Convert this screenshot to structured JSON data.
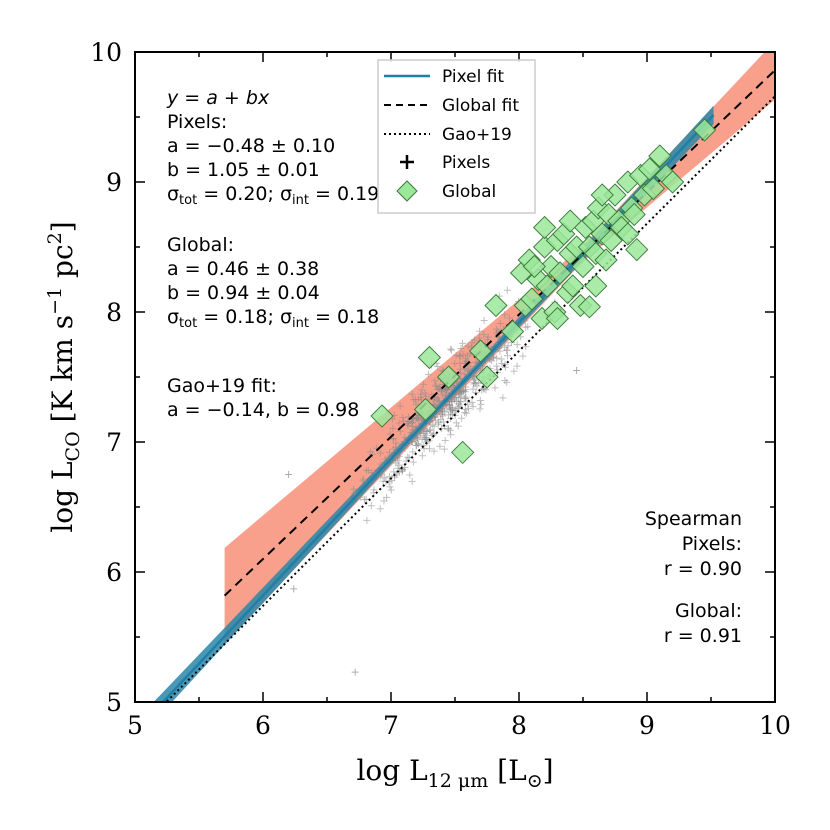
{
  "chart_data": {
    "type": "scatter",
    "xlabel": "log L12 μm [L⊙]",
    "ylabel": "log LCO [K km s−1 pc2]",
    "xlim": [
      5,
      10
    ],
    "ylim": [
      5,
      10
    ],
    "xticks": [
      "5",
      "6",
      "7",
      "8",
      "9",
      "10"
    ],
    "yticks": [
      "5",
      "6",
      "7",
      "8",
      "9",
      "10"
    ],
    "fits": {
      "pixel": {
        "a": -0.48,
        "a_err": 0.1,
        "b": 1.05,
        "b_err": 0.01,
        "sigma_tot": 0.2,
        "sigma_int": 0.19,
        "x_range": [
          5.0,
          9.52
        ]
      },
      "global": {
        "a": 0.46,
        "a_err": 0.38,
        "b": 0.94,
        "b_err": 0.04,
        "sigma_tot": 0.18,
        "sigma_int": 0.18,
        "x_range": [
          5.7,
          10.0
        ]
      },
      "gao19": {
        "a": -0.14,
        "b": 0.98,
        "x_range": [
          5.0,
          10.0
        ]
      }
    },
    "spearman": {
      "pixels_r": 0.9,
      "global_r": 0.91
    },
    "global_points": [
      [
        6.93,
        7.2
      ],
      [
        7.27,
        7.25
      ],
      [
        7.3,
        7.65
      ],
      [
        7.45,
        7.5
      ],
      [
        7.56,
        6.92
      ],
      [
        7.7,
        7.7
      ],
      [
        7.75,
        7.5
      ],
      [
        7.82,
        8.05
      ],
      [
        7.95,
        7.85
      ],
      [
        8.02,
        8.3
      ],
      [
        8.05,
        8.05
      ],
      [
        8.08,
        8.4
      ],
      [
        8.1,
        8.1
      ],
      [
        8.15,
        8.25
      ],
      [
        8.18,
        7.95
      ],
      [
        8.2,
        8.5
      ],
      [
        8.22,
        8.2
      ],
      [
        8.25,
        8.35
      ],
      [
        8.28,
        8.0
      ],
      [
        8.3,
        8.55
      ],
      [
        8.32,
        8.3
      ],
      [
        8.35,
        8.6
      ],
      [
        8.38,
        8.15
      ],
      [
        8.4,
        8.45
      ],
      [
        8.42,
        8.2
      ],
      [
        8.45,
        8.5
      ],
      [
        8.48,
        8.05
      ],
      [
        8.5,
        8.35
      ],
      [
        8.52,
        8.65
      ],
      [
        8.55,
        8.5
      ],
      [
        8.58,
        8.7
      ],
      [
        8.6,
        8.45
      ],
      [
        8.62,
        8.8
      ],
      [
        8.65,
        8.6
      ],
      [
        8.68,
        8.4
      ],
      [
        8.7,
        8.75
      ],
      [
        8.72,
        8.55
      ],
      [
        8.75,
        8.9
      ],
      [
        8.78,
        8.7
      ],
      [
        8.8,
        8.65
      ],
      [
        8.85,
        9.0
      ],
      [
        8.88,
        8.8
      ],
      [
        8.9,
        8.75
      ],
      [
        8.92,
        8.48
      ],
      [
        8.95,
        9.05
      ],
      [
        8.98,
        8.9
      ],
      [
        9.02,
        9.1
      ],
      [
        9.05,
        8.95
      ],
      [
        9.1,
        9.2
      ],
      [
        9.15,
        9.05
      ],
      [
        9.2,
        9.0
      ],
      [
        9.45,
        9.4
      ],
      [
        8.6,
        8.2
      ],
      [
        8.3,
        7.95
      ],
      [
        8.55,
        8.04
      ],
      [
        8.12,
        8.35
      ],
      [
        8.65,
        8.9
      ],
      [
        8.85,
        8.6
      ],
      [
        8.4,
        8.7
      ],
      [
        8.2,
        8.65
      ]
    ]
  },
  "annotations": {
    "fit_form": "y = a + bx",
    "pixels_header": "Pixels:",
    "pixels_a": "a = −0.48 ± 0.10",
    "pixels_b": "b = 1.05 ± 0.01",
    "pixels_sigma_pre": "σ",
    "pixels_sigma_tot_sub": "tot",
    "pixels_sigma_mid": " = 0.20; σ",
    "pixels_sigma_int_sub": "int",
    "pixels_sigma_post": " = 0.19",
    "global_header": "Global:",
    "global_a": "a = 0.46 ± 0.38",
    "global_b": "b = 0.94 ± 0.04",
    "global_sigma_pre": "σ",
    "global_sigma_tot_sub": "tot",
    "global_sigma_mid": " = 0.18; σ",
    "global_sigma_int_sub": "int",
    "global_sigma_post": " = 0.18",
    "gao_header": "Gao+19 fit:",
    "gao_params": "a = −0.14,  b = 0.98",
    "spearman_header": "Spearman",
    "spearman_pixels": "Pixels:",
    "spearman_pixels_r": "r = 0.90",
    "spearman_global": "Global:",
    "spearman_global_r": "r = 0.91"
  },
  "legend": {
    "pixel_fit": "Pixel fit",
    "global_fit": "Global fit",
    "gao19": "Gao+19",
    "pixels": "Pixels",
    "global": "Global"
  },
  "axis_text": {
    "x_pre": "log L",
    "x_sub": "12 μm",
    "x_post": " [L",
    "x_sun": "⊙",
    "x_close": "]",
    "y_pre": "log L",
    "y_sub": "CO",
    "y_post": " [K km s",
    "y_sup1": "−1",
    "y_mid": " pc",
    "y_sup2": "2",
    "y_close": "]"
  },
  "colors": {
    "pixel_fit": "#1f7fa6",
    "pixel_band": "#2a86a8",
    "global_band": "#f7967f",
    "global_marker": "#9be89b",
    "pixel_marker": "#8a8a8a"
  }
}
